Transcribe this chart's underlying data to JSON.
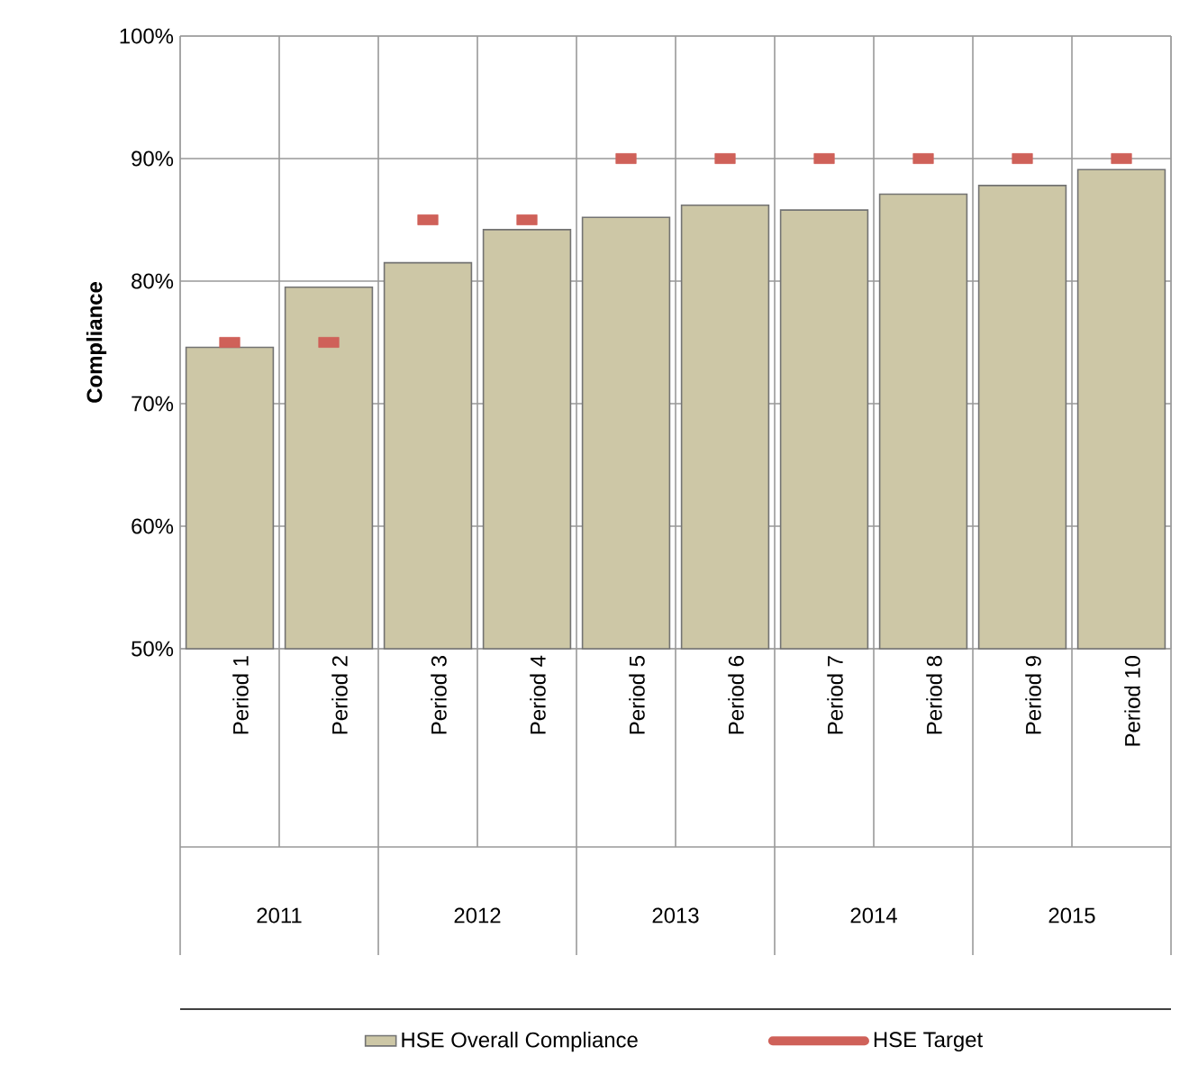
{
  "chart_data": {
    "type": "bar",
    "ylabel": "Compliance",
    "categories": [
      "Period 1",
      "Period 2",
      "Period 3",
      "Period 4",
      "Period 5",
      "Period 6",
      "Period 7",
      "Period 8",
      "Period 9",
      "Period 10"
    ],
    "series": [
      {
        "name": "HSE Overall Compliance",
        "color": "#cdc7a6",
        "values": [
          74.6,
          79.5,
          81.5,
          84.2,
          85.2,
          86.2,
          85.8,
          87.1,
          87.8,
          89.1
        ]
      },
      {
        "name": "HSE Target",
        "type": "scatter",
        "color": "#cf6159",
        "x": [
          "Period 1",
          "Period 2",
          "Period 3",
          "Period 4",
          "Period 5",
          "Period 6",
          "Period 7",
          "Period 8",
          "Period 9",
          "Period 10"
        ],
        "values": [
          75,
          75,
          85,
          85,
          90,
          90,
          90,
          90,
          90,
          90
        ]
      }
    ],
    "ylim": [
      50,
      100
    ],
    "yticks": [
      {
        "value": 50,
        "label": "50%"
      },
      {
        "value": 60,
        "label": "60%"
      },
      {
        "value": 70,
        "label": "70%"
      },
      {
        "value": 80,
        "label": "80%"
      },
      {
        "value": 90,
        "label": "90%"
      },
      {
        "value": 100,
        "label": "100%"
      }
    ],
    "grid": true,
    "legend": "bottom",
    "marker": "square",
    "annotations": [
      "2011",
      "2012",
      "2013",
      "2014",
      "2015"
    ]
  }
}
